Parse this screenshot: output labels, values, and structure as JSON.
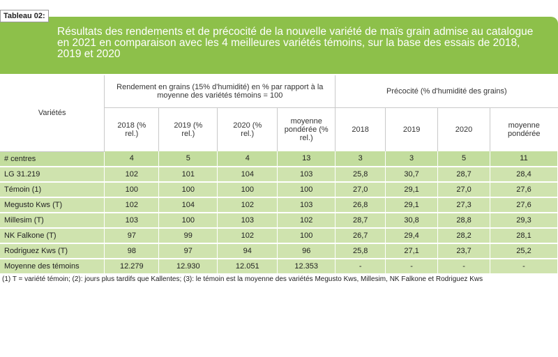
{
  "table_label": "Tableau 02:",
  "title": "Résultats des rendements et de précocité de la nouvelle variété de maïs grain admise au catalogue en 2021 en comparaison avec les 4 meilleures variétés témoins, sur la base des essais de 2018, 2019 et 2020",
  "header": {
    "varietes": "Variétés",
    "rendement_group": "Rendement en grains (15% d'humidité) en % par rapport à la moyenne des variétés témoins = 100",
    "precocite_group": "Précocité  (% d'humidité des grains)",
    "rendement_cols": [
      "2018 (% rel.)",
      "2019 (% rel.)",
      "2020 (% rel.)",
      "moyenne pondérée (% rel.)"
    ],
    "precocite_cols": [
      "2018",
      "2019",
      "2020",
      "moyenne pondérée"
    ]
  },
  "rows": [
    {
      "name": "# centres",
      "values": [
        "4",
        "5",
        "4",
        "13",
        "3",
        "3",
        "5",
        "11"
      ]
    },
    {
      "name": "LG 31.219",
      "values": [
        "102",
        "101",
        "104",
        "103",
        "25,8",
        "30,7",
        "28,7",
        "28,4"
      ]
    },
    {
      "name": "Témoin (1)",
      "values": [
        "100",
        "100",
        "100",
        "100",
        "27,0",
        "29,1",
        "27,0",
        "27,6"
      ]
    },
    {
      "name": "Megusto Kws (T)",
      "values": [
        "102",
        "104",
        "102",
        "103",
        "26,8",
        "29,1",
        "27,3",
        "27,6"
      ]
    },
    {
      "name": "Millesim (T)",
      "values": [
        "103",
        "100",
        "103",
        "102",
        "28,7",
        "30,8",
        "28,8",
        "29,3"
      ]
    },
    {
      "name": "NK Falkone (T)",
      "values": [
        "97",
        "99",
        "102",
        "100",
        "26,7",
        "29,4",
        "28,2",
        "28,1"
      ]
    },
    {
      "name": "Rodriguez Kws (T)",
      "values": [
        "98",
        "97",
        "94",
        "96",
        "25,8",
        "27,1",
        "23,7",
        "25,2"
      ]
    },
    {
      "name": "Moyenne des témoins",
      "values": [
        "12.279",
        "12.930",
        "12.051",
        "12.353",
        "-",
        "-",
        "-",
        "-"
      ]
    }
  ],
  "footnote": "(1) T = variété témoin; (2): jours plus tardifs que Kallentes; (3): le témoin est la moyenne des variétés Megusto Kws, Millesim, NK Falkone et Rodriguez Kws"
}
